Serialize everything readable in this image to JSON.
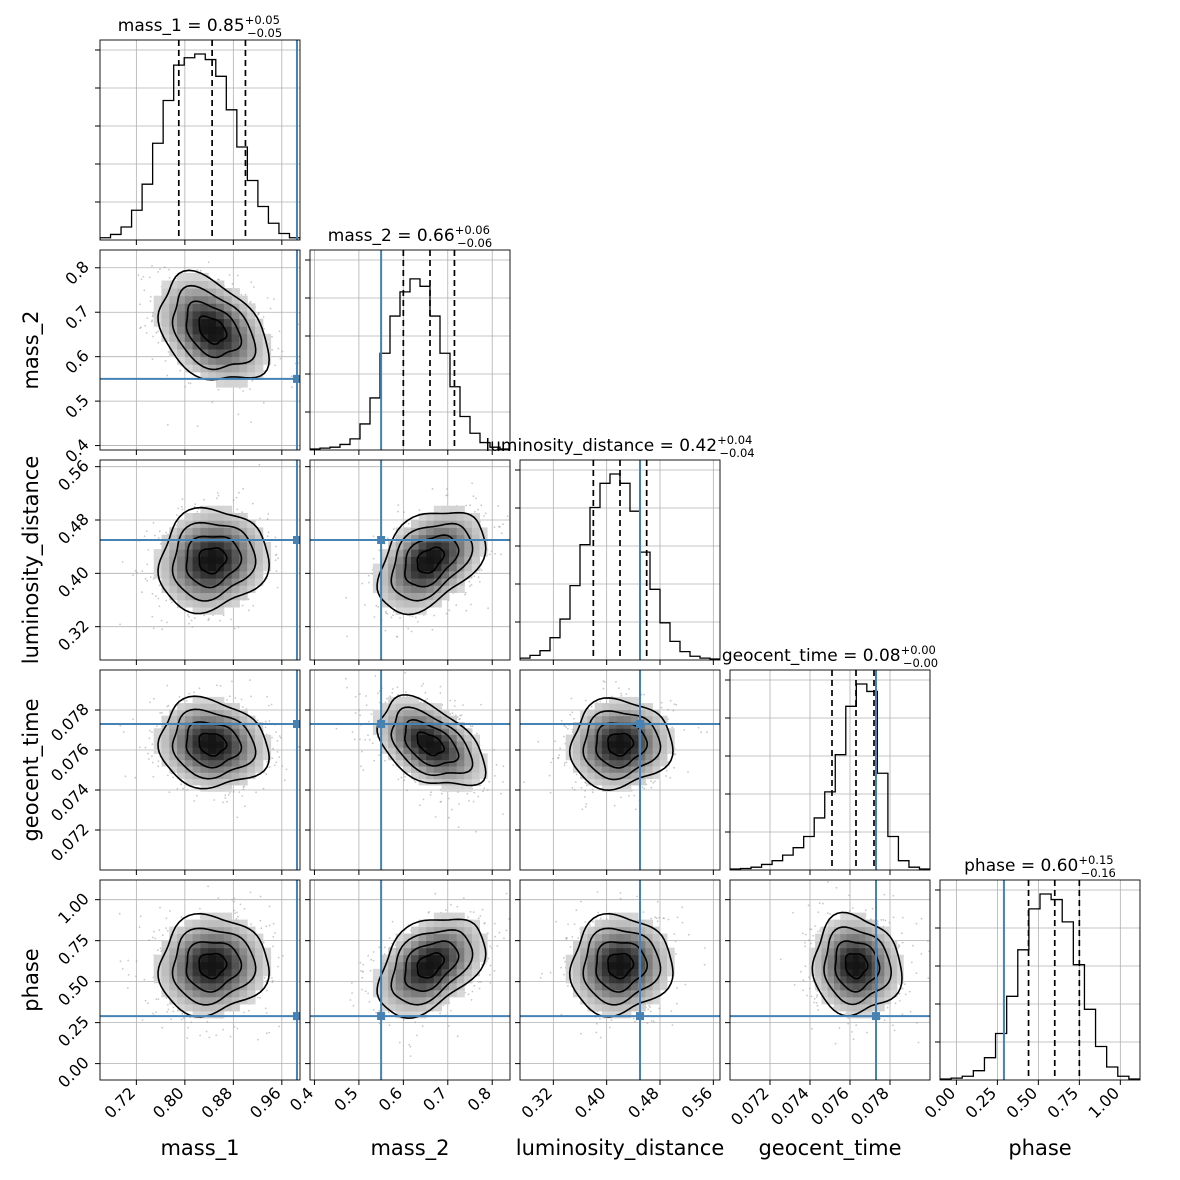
{
  "chart_data": {
    "type": "corner",
    "parameters": [
      {
        "name": "mass_1",
        "title_prefix": "mass_1 = ",
        "median": "0.85",
        "plus": "+0.05",
        "minus": "−0.05",
        "range": [
          0.66,
          0.99
        ],
        "ticks": [
          0.72,
          0.8,
          0.88,
          0.96
        ],
        "tick_labels": [
          "0.72",
          "0.80",
          "0.88",
          "0.96"
        ],
        "injection": 0.985,
        "quantiles": [
          0.79,
          0.845,
          0.9
        ],
        "mean": 0.845,
        "sd": 0.045,
        "hist": [
          0.012,
          0.03,
          0.07,
          0.16,
          0.3,
          0.52,
          0.75,
          0.94,
          0.98,
          1.0,
          0.97,
          0.88,
          0.7,
          0.5,
          0.32,
          0.18,
          0.09,
          0.035,
          0.012
        ]
      },
      {
        "name": "mass_2",
        "title_prefix": "mass_2 = ",
        "median": "0.66",
        "plus": "+0.06",
        "minus": "−0.06",
        "range": [
          0.39,
          0.84
        ],
        "ticks": [
          0.4,
          0.5,
          0.6,
          0.7,
          0.8
        ],
        "tick_labels": [
          "0.4",
          "0.5",
          "0.6",
          "0.7",
          "0.8"
        ],
        "injection": 0.55,
        "quantiles": [
          0.6,
          0.66,
          0.715
        ],
        "mean": 0.66,
        "sd": 0.06,
        "hist": [
          0.005,
          0.01,
          0.015,
          0.03,
          0.06,
          0.14,
          0.28,
          0.52,
          0.72,
          0.85,
          0.92,
          0.88,
          0.72,
          0.52,
          0.34,
          0.18,
          0.09,
          0.04,
          0.015,
          0.005
        ]
      },
      {
        "name": "luminosity_distance",
        "title_prefix": "luminosity_distance = ",
        "median": "0.42",
        "plus": "+0.04",
        "minus": "−0.04",
        "range": [
          0.27,
          0.57
        ],
        "ticks": [
          0.32,
          0.4,
          0.48,
          0.56
        ],
        "tick_labels": [
          "0.32",
          "0.40",
          "0.48",
          "0.56"
        ],
        "injection": 0.45,
        "quantiles": [
          0.38,
          0.42,
          0.46
        ],
        "mean": 0.42,
        "sd": 0.038,
        "hist": [
          0.01,
          0.025,
          0.05,
          0.12,
          0.22,
          0.4,
          0.62,
          0.82,
          0.95,
          1.0,
          0.95,
          0.8,
          0.58,
          0.38,
          0.2,
          0.1,
          0.045,
          0.02,
          0.01,
          0.005
        ]
      },
      {
        "name": "geocent_time",
        "title_prefix": "geocent_time = ",
        "median": "0.08",
        "plus": "+0.00",
        "minus": "−0.00",
        "range": [
          0.07,
          0.08
        ],
        "ticks": [
          0.072,
          0.074,
          0.076,
          0.078
        ],
        "tick_labels": [
          "0.072",
          "0.074",
          "0.076",
          "0.078"
        ],
        "injection": 0.0773,
        "quantiles": [
          0.0751,
          0.0763,
          0.0772
        ],
        "mean": 0.0763,
        "sd": 0.0011,
        "hist": [
          0.005,
          0.008,
          0.015,
          0.03,
          0.05,
          0.08,
          0.12,
          0.18,
          0.28,
          0.42,
          0.62,
          0.88,
          1.0,
          0.96,
          0.52,
          0.18,
          0.05,
          0.015,
          0.005
        ]
      },
      {
        "name": "phase",
        "title_prefix": "phase = ",
        "median": "0.60",
        "plus": "+0.15",
        "minus": "−0.16",
        "range": [
          -0.1,
          1.12
        ],
        "ticks": [
          0.0,
          0.25,
          0.5,
          0.75,
          1.0
        ],
        "tick_labels": [
          "0.00",
          "0.25",
          "0.50",
          "0.75",
          "1.00"
        ],
        "injection": 0.29,
        "quantiles": [
          0.44,
          0.6,
          0.75
        ],
        "mean": 0.6,
        "sd": 0.15,
        "hist": [
          0.005,
          0.01,
          0.02,
          0.05,
          0.12,
          0.25,
          0.45,
          0.7,
          0.92,
          1.0,
          0.97,
          0.85,
          0.62,
          0.38,
          0.18,
          0.07,
          0.02,
          0.005
        ]
      }
    ],
    "correlations": {
      "1-0": -0.35,
      "2-0": 0.1,
      "2-1": 0.4,
      "3-0": -0.1,
      "3-1": -0.45,
      "3-2": 0.05,
      "4-0": 0.05,
      "4-1": 0.4,
      "4-2": 0.05,
      "4-3": -0.05
    },
    "ylabels_rows": [
      "mass_2",
      "luminosity_distance",
      "geocent_time",
      "phase"
    ],
    "xlabels_cols": [
      "mass_1",
      "mass_2",
      "luminosity_distance",
      "geocent_time",
      "phase"
    ],
    "contour_levels_sigma": [
      0.5,
      1.0,
      1.5,
      2.0
    ],
    "grid": true,
    "colors": {
      "injection": "#4682b4",
      "contour": "#000000",
      "scatter": "#9a9a9a",
      "grid": "#b0b0b0"
    }
  }
}
